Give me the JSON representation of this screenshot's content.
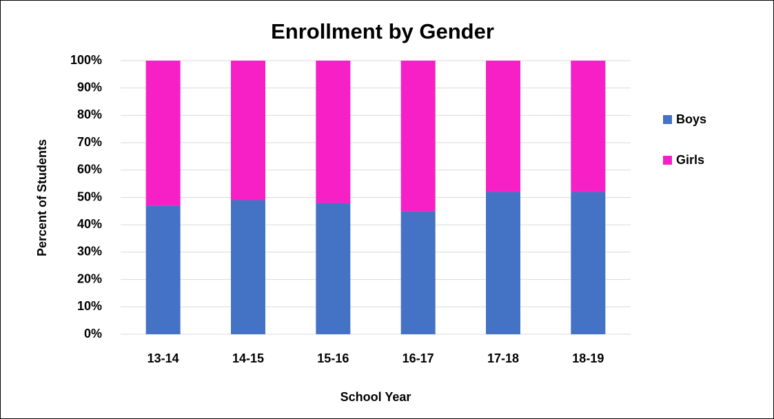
{
  "chart_data": {
    "type": "stacked_bar",
    "title": "Enrollment by Gender",
    "x_label": "School Year",
    "y_label": "Percent of Students",
    "categories": [
      "13-14",
      "14-15",
      "15-16",
      "16-17",
      "17-18",
      "18-19"
    ],
    "series": [
      {
        "name": "Boys",
        "color": "#4472c4",
        "values": [
          47,
          49,
          48,
          45,
          52,
          52
        ]
      },
      {
        "name": "Girls",
        "color": "#f71fc6",
        "values": [
          53,
          51,
          52,
          55,
          48,
          48
        ]
      }
    ],
    "ylim": [
      0,
      100
    ],
    "yticks": [
      {
        "value": 0,
        "label": "0%"
      },
      {
        "value": 10,
        "label": "10%"
      },
      {
        "value": 20,
        "label": "20%"
      },
      {
        "value": 30,
        "label": "30%"
      },
      {
        "value": 40,
        "label": "40%"
      },
      {
        "value": 50,
        "label": "50%"
      },
      {
        "value": 60,
        "label": "60%"
      },
      {
        "value": 70,
        "label": "70%"
      },
      {
        "value": 80,
        "label": "80%"
      },
      {
        "value": 90,
        "label": "90%"
      },
      {
        "value": 100,
        "label": "100%"
      }
    ],
    "grid": true,
    "legend": "right"
  }
}
